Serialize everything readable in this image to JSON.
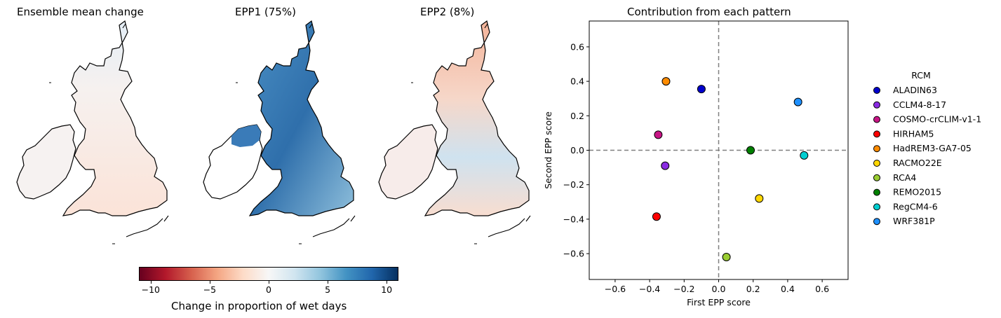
{
  "maps": [
    {
      "title": "Ensemble mean change",
      "id": "ensemble-mean"
    },
    {
      "title": "EPP1 (75%)",
      "id": "epp1"
    },
    {
      "title": "EPP2 (8%)",
      "id": "epp2"
    }
  ],
  "colorbar": {
    "label": "Change in proportion of wet days",
    "ticks": [
      "−10",
      "−5",
      "0",
      "5",
      "10"
    ],
    "tick_values": [
      -10,
      -5,
      0,
      5,
      10
    ],
    "range": [
      -11,
      11
    ],
    "colormap": "RdBu"
  },
  "chart_data": {
    "type": "scatter",
    "title": "Contribution from each pattern",
    "xlabel": "First EPP score",
    "ylabel": "Second EPP score",
    "xlim": [
      -0.75,
      0.75
    ],
    "ylim": [
      -0.75,
      0.75
    ],
    "xticks": [
      -0.6,
      -0.4,
      -0.2,
      0.0,
      0.2,
      0.4,
      0.6
    ],
    "yticks": [
      -0.6,
      -0.4,
      -0.2,
      0.0,
      0.2,
      0.4,
      0.6
    ],
    "xtick_labels": [
      "−0.6",
      "−0.4",
      "−0.2",
      "0.0",
      "0.2",
      "0.4",
      "0.6"
    ],
    "ytick_labels": [
      "−0.6",
      "−0.4",
      "−0.2",
      "0.0",
      "0.2",
      "0.4",
      "0.6"
    ],
    "reference_lines": {
      "x": 0,
      "y": 0,
      "style": "dashed",
      "color": "#808080"
    },
    "grid": false,
    "legend": {
      "title": "RCM",
      "placement": "right, outside"
    },
    "series": [
      {
        "name": "ALADIN63",
        "color": "#0000cd",
        "x": -0.1,
        "y": 0.355
      },
      {
        "name": "CCLM4-8-17",
        "color": "#8a2be2",
        "x": -0.31,
        "y": -0.09
      },
      {
        "name": "COSMO-crCLIM-v1-1",
        "color": "#c71585",
        "x": -0.35,
        "y": 0.09
      },
      {
        "name": "HIRHAM5",
        "color": "#ff0000",
        "x": -0.36,
        "y": -0.385
      },
      {
        "name": "HadREM3-GA7-05",
        "color": "#ff8c00",
        "x": -0.305,
        "y": 0.4
      },
      {
        "name": "RACMO22E",
        "color": "#ffd700",
        "x": 0.235,
        "y": -0.28
      },
      {
        "name": "RCA4",
        "color": "#9acd32",
        "x": 0.045,
        "y": -0.62
      },
      {
        "name": "REMO2015",
        "color": "#008000",
        "x": 0.185,
        "y": 0.0
      },
      {
        "name": "RegCM4-6",
        "color": "#00ced1",
        "x": 0.495,
        "y": -0.03
      },
      {
        "name": "WRF381P",
        "color": "#1e90ff",
        "x": 0.46,
        "y": 0.28
      }
    ]
  }
}
